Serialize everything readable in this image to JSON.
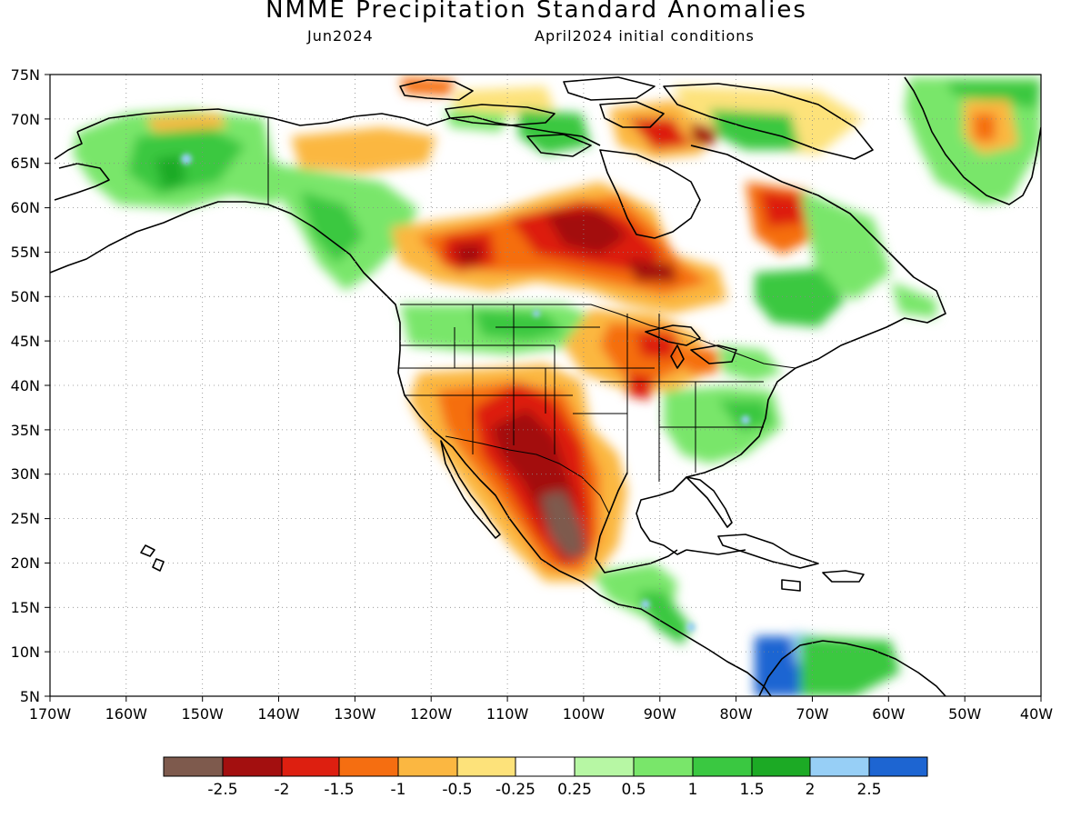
{
  "title": "NMME Precipitation Standard Anomalies",
  "subtitle_left": "Jun2024",
  "subtitle_right": "April2024 initial conditions",
  "map": {
    "lat_labels": [
      "75N",
      "70N",
      "65N",
      "60N",
      "55N",
      "50N",
      "45N",
      "40N",
      "35N",
      "30N",
      "25N",
      "20N",
      "15N",
      "10N",
      "5N"
    ],
    "lon_labels": [
      "170W",
      "160W",
      "150W",
      "140W",
      "130W",
      "120W",
      "110W",
      "100W",
      "90W",
      "80W",
      "70W",
      "60W",
      "50W",
      "40W"
    ],
    "extent": {
      "lon": [
        -170,
        -40
      ],
      "lat": [
        5,
        75
      ]
    }
  },
  "legend": {
    "colors": [
      "#7e5a4d",
      "#a30f0f",
      "#dd1f10",
      "#f56e11",
      "#fbb741",
      "#fde27a",
      "#ffffff",
      "#b7f7a4",
      "#79e66a",
      "#3ac841",
      "#1caa25",
      "#97cff6",
      "#1d65d2"
    ],
    "labels": [
      "-2.5",
      "-2",
      "-1.5",
      "-1",
      "-0.5",
      "-0.25",
      "0.25",
      "0.5",
      "1",
      "1.5",
      "2",
      "2.5"
    ]
  }
}
